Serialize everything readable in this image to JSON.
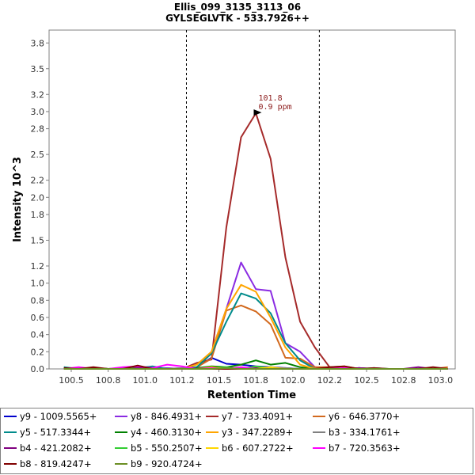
{
  "chart_data": {
    "type": "line",
    "title": "Ellis_099_3135_3113_06",
    "subtitle": "GYLSEGLVTK - 533.7926++",
    "xlabel": "Retention Time",
    "ylabel": "Intensity 10^3",
    "xlim": [
      100.35,
      103.1
    ],
    "ylim": [
      0,
      3.95
    ],
    "x_ticks": [
      "100.5",
      "100.8",
      "101.0",
      "101.2",
      "101.5",
      "101.8",
      "102.0",
      "102.2",
      "102.5",
      "102.8",
      "103.0"
    ],
    "y_ticks": [
      "0.0",
      "0.2",
      "0.4",
      "0.6",
      "0.8",
      "1.0",
      "1.2",
      "1.5",
      "1.8",
      "2.0",
      "2.2",
      "2.5",
      "2.8",
      "3.0",
      "3.2",
      "3.5",
      "3.8"
    ],
    "boundaries": [
      101.28,
      102.18
    ],
    "annotation": {
      "x": 101.8,
      "y": 2.98,
      "line1": "101.8",
      "line2": "0.9 ppm"
    },
    "x": [
      100.45,
      100.55,
      100.65,
      100.75,
      100.85,
      100.95,
      101.05,
      101.15,
      101.25,
      101.35,
      101.45,
      101.55,
      101.65,
      101.75,
      101.85,
      101.95,
      102.05,
      102.15,
      102.25,
      102.35,
      102.45,
      102.55,
      102.65,
      102.75,
      102.85,
      102.95,
      103.05
    ],
    "series": [
      {
        "name": "y9 - 1009.5565+",
        "color": "#0000cc",
        "values": [
          0.01,
          0.0,
          0.01,
          0.0,
          0.0,
          0.02,
          0.01,
          0.0,
          0.01,
          0.02,
          0.13,
          0.06,
          0.05,
          0.03,
          0.02,
          0.01,
          0.0,
          0.0,
          0.0,
          0.0,
          0.01,
          0.0,
          0.0,
          0.0,
          0.0,
          0.0,
          0.0
        ]
      },
      {
        "name": "y8 - 846.4931+",
        "color": "#8a2be2",
        "values": [
          0.01,
          0.0,
          0.0,
          0.0,
          0.01,
          0.0,
          0.0,
          0.01,
          0.0,
          0.0,
          0.2,
          0.7,
          1.24,
          0.93,
          0.91,
          0.3,
          0.2,
          0.02,
          0.0,
          0.0,
          0.01,
          0.0,
          0.0,
          0.0,
          0.0,
          0.0,
          0.0
        ]
      },
      {
        "name": "y7 - 733.4091+",
        "color": "#a52a2a",
        "values": [
          0.0,
          0.01,
          0.0,
          0.0,
          0.0,
          0.01,
          0.0,
          0.0,
          0.0,
          0.07,
          0.11,
          1.65,
          2.7,
          2.98,
          2.45,
          1.3,
          0.55,
          0.25,
          0.02,
          0.0,
          0.0,
          0.0,
          0.0,
          0.0,
          0.0,
          0.0,
          0.0
        ]
      },
      {
        "name": "y6 - 646.3770+",
        "color": "#d2691e",
        "values": [
          0.0,
          0.0,
          0.0,
          0.0,
          0.0,
          0.0,
          0.0,
          0.0,
          0.0,
          0.02,
          0.12,
          0.68,
          0.74,
          0.67,
          0.52,
          0.13,
          0.12,
          0.02,
          0.02,
          0.03,
          0.0,
          0.0,
          0.0,
          0.0,
          0.0,
          0.0,
          0.02
        ]
      },
      {
        "name": "y5 - 517.3344+",
        "color": "#008b8b",
        "values": [
          0.02,
          0.0,
          0.01,
          0.0,
          0.0,
          0.01,
          0.03,
          0.0,
          0.0,
          0.02,
          0.18,
          0.55,
          0.88,
          0.82,
          0.65,
          0.3,
          0.1,
          0.0,
          0.0,
          0.0,
          0.0,
          0.01,
          0.0,
          0.0,
          0.0,
          0.0,
          0.0
        ]
      },
      {
        "name": "y4 - 460.3130+",
        "color": "#008000",
        "values": [
          0.0,
          0.0,
          0.0,
          0.0,
          0.0,
          0.01,
          0.0,
          0.0,
          0.0,
          0.01,
          0.03,
          0.02,
          0.05,
          0.1,
          0.05,
          0.07,
          0.02,
          0.0,
          0.0,
          0.0,
          0.0,
          0.0,
          0.0,
          0.0,
          0.0,
          0.0,
          0.0
        ]
      },
      {
        "name": "y3 - 347.2289+",
        "color": "#ffa500",
        "values": [
          0.0,
          0.0,
          0.0,
          0.0,
          0.0,
          0.0,
          0.0,
          0.0,
          0.0,
          0.05,
          0.2,
          0.7,
          0.98,
          0.9,
          0.6,
          0.25,
          0.05,
          0.0,
          0.0,
          0.0,
          0.0,
          0.0,
          0.0,
          0.0,
          0.0,
          0.0,
          0.0
        ]
      },
      {
        "name": "b3 - 334.1761+",
        "color": "#808080",
        "values": [
          0.0,
          0.0,
          0.0,
          0.0,
          0.0,
          0.0,
          0.0,
          0.0,
          0.01,
          0.0,
          0.0,
          0.01,
          0.0,
          0.02,
          0.0,
          0.01,
          0.0,
          0.0,
          0.0,
          0.0,
          0.0,
          0.0,
          0.0,
          0.0,
          0.0,
          0.0,
          0.0
        ]
      },
      {
        "name": "b4 - 421.2082+",
        "color": "#800080",
        "values": [
          0.0,
          0.0,
          0.01,
          0.0,
          0.0,
          0.02,
          0.0,
          0.0,
          0.0,
          0.0,
          0.01,
          0.0,
          0.0,
          0.01,
          0.0,
          0.0,
          0.0,
          0.0,
          0.0,
          0.0,
          0.01,
          0.0,
          0.0,
          0.0,
          0.02,
          0.0,
          0.0
        ]
      },
      {
        "name": "b5 - 550.2507+",
        "color": "#32cd32",
        "values": [
          0.0,
          0.0,
          0.0,
          0.0,
          0.01,
          0.0,
          0.0,
          0.0,
          0.0,
          0.0,
          0.01,
          0.02,
          0.0,
          0.03,
          0.01,
          0.0,
          0.0,
          0.0,
          0.0,
          0.0,
          0.0,
          0.0,
          0.0,
          0.0,
          0.0,
          0.0,
          0.0
        ]
      },
      {
        "name": "b6 - 607.2722+",
        "color": "#ffd700",
        "values": [
          0.0,
          0.0,
          0.0,
          0.0,
          0.0,
          0.0,
          0.0,
          0.0,
          0.0,
          0.0,
          0.02,
          0.0,
          0.01,
          0.0,
          0.02,
          0.0,
          0.0,
          0.0,
          0.0,
          0.0,
          0.0,
          0.0,
          0.0,
          0.0,
          0.0,
          0.0,
          0.0
        ]
      },
      {
        "name": "b7 - 720.3563+",
        "color": "#ff00ff",
        "values": [
          0.0,
          0.02,
          0.0,
          0.0,
          0.02,
          0.03,
          0.01,
          0.05,
          0.03,
          0.0,
          0.01,
          0.0,
          0.02,
          0.0,
          0.0,
          0.0,
          0.0,
          0.0,
          0.0,
          0.01,
          0.0,
          0.0,
          0.0,
          0.0,
          0.0,
          0.0,
          0.0
        ]
      },
      {
        "name": "b8 - 819.4247+",
        "color": "#800000",
        "values": [
          0.01,
          0.0,
          0.02,
          0.0,
          0.0,
          0.04,
          0.0,
          0.0,
          0.0,
          0.0,
          0.0,
          0.0,
          0.0,
          0.0,
          0.0,
          0.0,
          0.0,
          0.0,
          0.02,
          0.03,
          0.0,
          0.01,
          0.0,
          0.0,
          0.0,
          0.02,
          0.0
        ]
      },
      {
        "name": "b9 - 920.4724+",
        "color": "#6b8e23",
        "values": [
          0.0,
          0.0,
          0.0,
          0.0,
          0.0,
          0.0,
          0.0,
          0.0,
          0.0,
          0.0,
          0.0,
          0.01,
          0.0,
          0.0,
          0.0,
          0.0,
          0.0,
          0.0,
          0.0,
          0.0,
          0.0,
          0.0,
          0.0,
          0.0,
          0.0,
          0.0,
          0.0
        ]
      }
    ]
  }
}
